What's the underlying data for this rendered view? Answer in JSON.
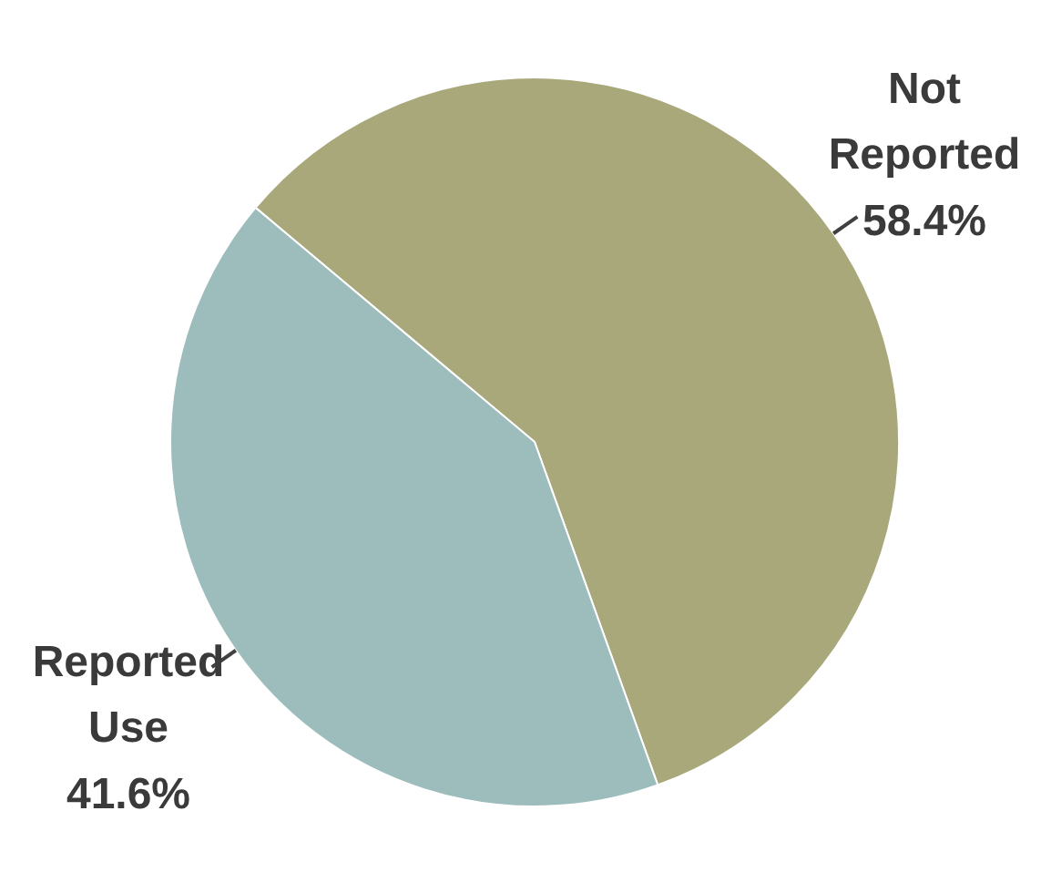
{
  "chart_data": {
    "type": "pie",
    "categories": [
      "Not Reported",
      "Reported Use"
    ],
    "values": [
      58.4,
      41.6
    ],
    "value_labels": [
      "58.4%",
      "41.6%"
    ],
    "colors": [
      "#a9a87b",
      "#9dbcbc"
    ]
  }
}
